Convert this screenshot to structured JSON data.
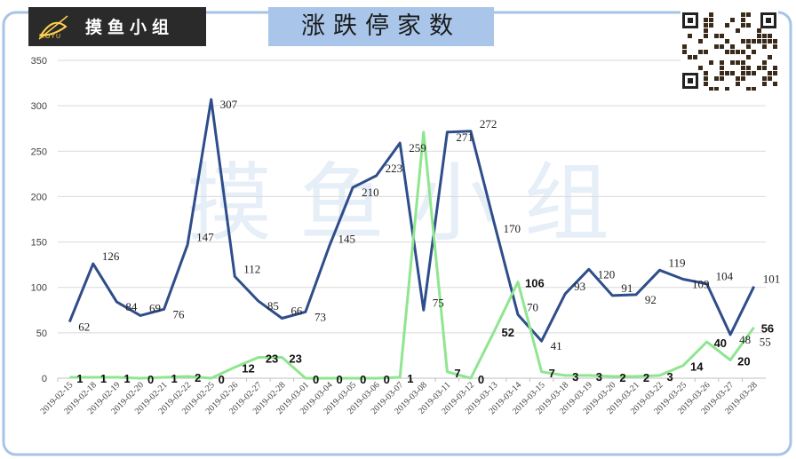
{
  "title": "涨跌停家数",
  "logo": {
    "text": "摸鱼小组",
    "sub": "MOYU"
  },
  "watermark": "摸 鱼 小 组",
  "colors": {
    "up": "#2e4d8a",
    "down": "#8fe68f",
    "frame": "#a7c4e6",
    "title_bg": "#a9c6ea"
  },
  "chart_data": {
    "type": "line",
    "title": "涨跌停家数",
    "xlabel": "",
    "ylabel": "",
    "ylim": [
      0,
      350
    ],
    "yticks": [
      0,
      50,
      100,
      150,
      200,
      250,
      300,
      350
    ],
    "grid": true,
    "legend": "none",
    "categories": [
      "2019-02-15",
      "2019-02-18",
      "2019-02-19",
      "2019-02-20",
      "2019-02-21",
      "2019-02-22",
      "2019-02-25",
      "2019-02-26",
      "2019-02-27",
      "2019-02-28",
      "2019-03-01",
      "2019-03-04",
      "2019-03-05",
      "2019-03-06",
      "2019-03-07",
      "2019-03-08",
      "2019-03-11",
      "2019-03-12",
      "2019-03-13",
      "2019-03-14",
      "2019-03-15",
      "2019-03-18",
      "2019-03-19",
      "2019-03-20",
      "2019-03-21",
      "2019-03-22",
      "2019-03-25",
      "2019-03-26",
      "2019-03-27",
      "2019-03-28"
    ],
    "series": [
      {
        "values": [
          62,
          126,
          84,
          69,
          76,
          147,
          307,
          112,
          85,
          66,
          73,
          145,
          210,
          223,
          259,
          75,
          271,
          272,
          170,
          70,
          41,
          93,
          120,
          91,
          92,
          119,
          109,
          104,
          48,
          101
        ]
      },
      {
        "values": [
          1,
          1,
          1,
          0,
          1,
          2,
          0,
          12,
          23,
          23,
          0,
          0,
          0,
          0,
          1,
          271,
          7,
          0,
          52,
          106,
          7,
          3,
          3,
          2,
          2,
          3,
          14,
          40,
          20,
          56
        ]
      }
    ],
    "series_labels": [
      [
        "62",
        "126",
        "84",
        "69",
        "76",
        "147",
        "307",
        "112",
        "85",
        "66",
        "73",
        "145",
        "210",
        "223",
        "259",
        "75",
        "271",
        "272",
        "170",
        "70",
        "41",
        "93",
        "120",
        "91",
        "92",
        "119",
        "109",
        "104",
        "48",
        "101"
      ],
      [
        "1",
        "1",
        "1",
        "0",
        "1",
        "2",
        "0",
        "12",
        "23",
        "23",
        "0",
        "0",
        "0",
        "0",
        "1",
        "",
        "7",
        "0",
        "52",
        "106",
        "7",
        "3",
        "3",
        "2",
        "2",
        "3",
        "14",
        "40",
        "20",
        "56"
      ]
    ],
    "extra_labels": [
      "55"
    ]
  }
}
